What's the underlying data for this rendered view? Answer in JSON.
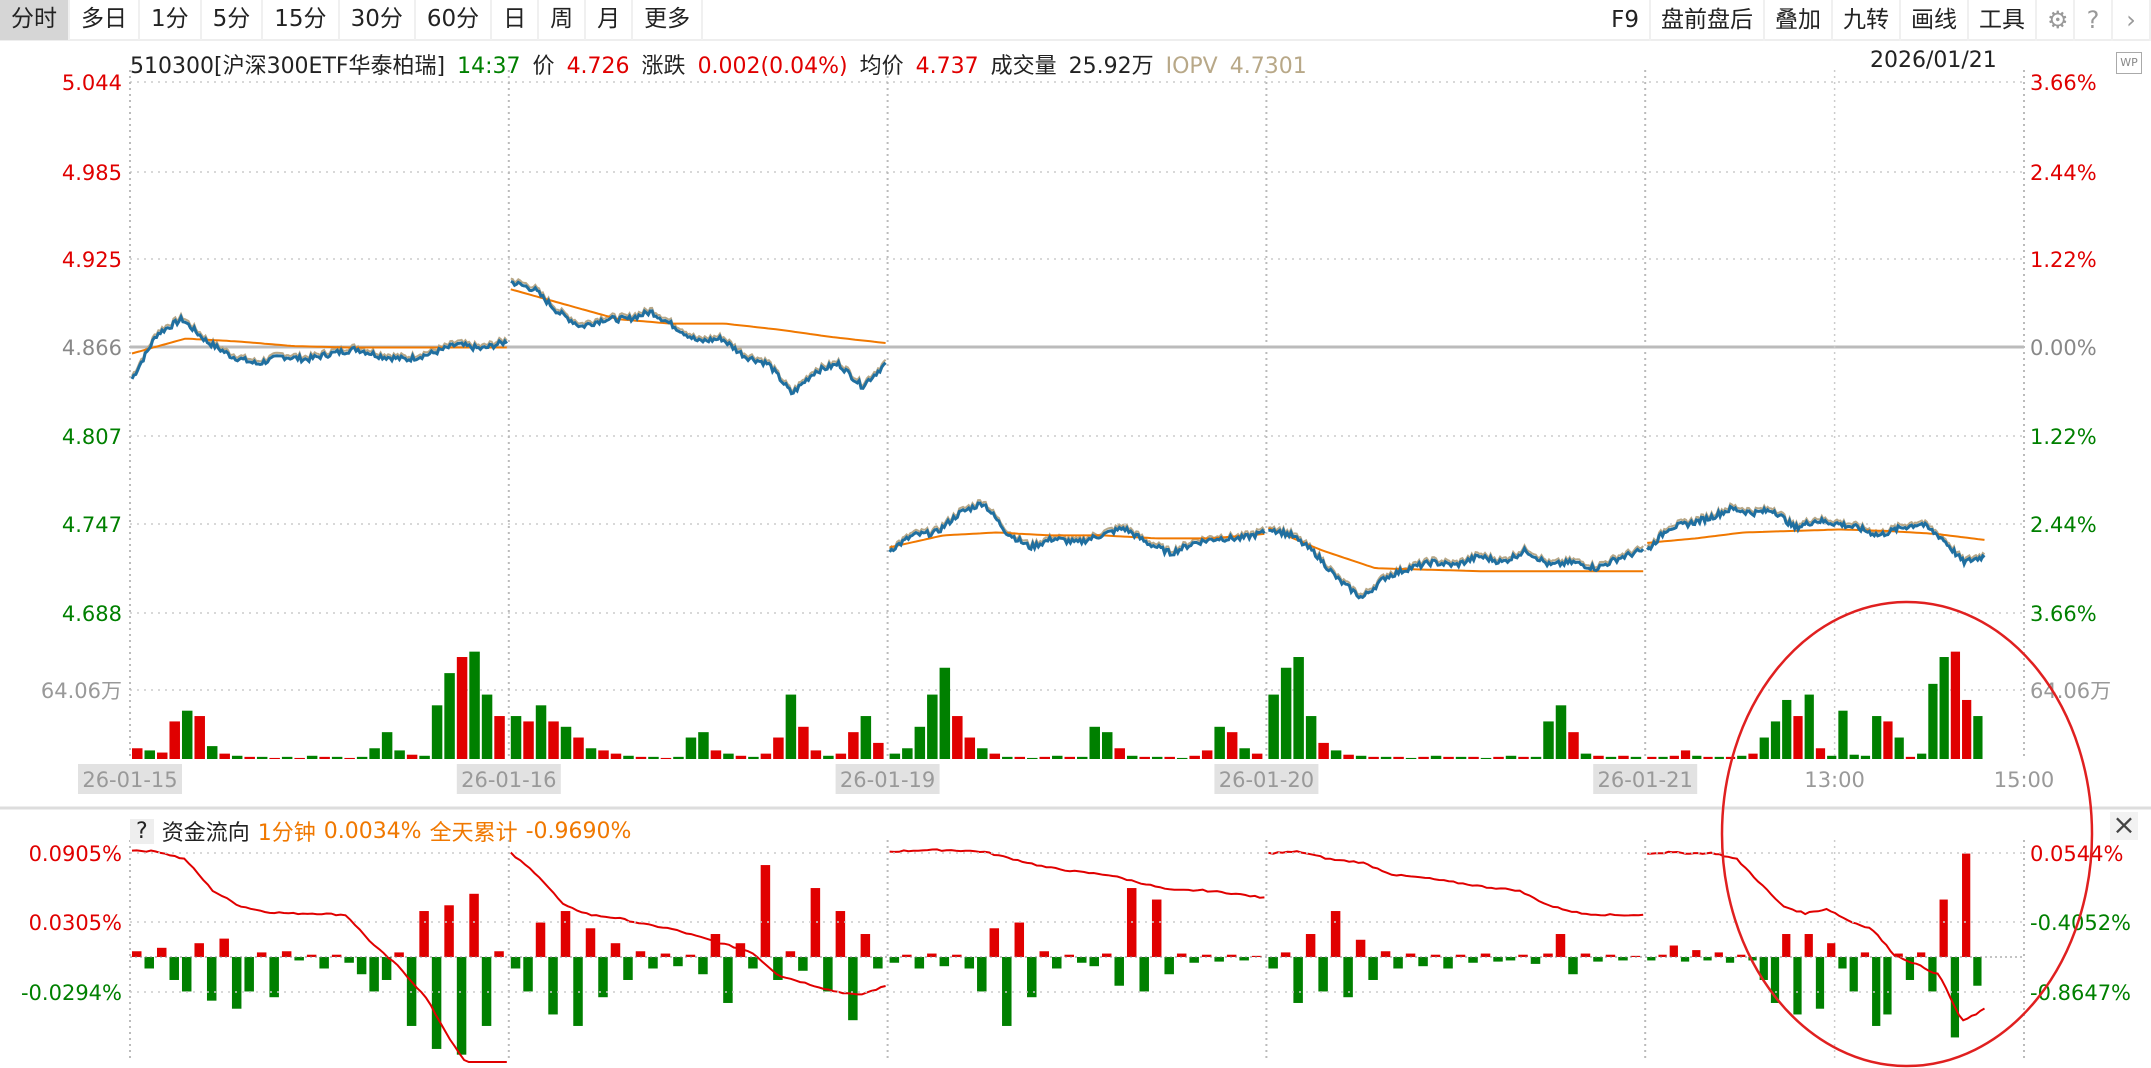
{
  "toolbar": {
    "tabs": [
      "分时",
      "多日",
      "1分",
      "5分",
      "15分",
      "30分",
      "60分",
      "日",
      "周",
      "月",
      "更多"
    ],
    "active": 1,
    "right": [
      "F9",
      "盘前盘后",
      "叠加",
      "九转",
      "画线",
      "工具"
    ],
    "icons": [
      "gear-icon",
      "help-icon",
      "chevron-right-icon"
    ]
  },
  "header": {
    "symbol": "510300[沪深300ETF华泰柏瑞]",
    "time": "14:37",
    "price_label": "价",
    "price": "4.726",
    "change_label": "涨跌",
    "change": "0.002(0.04%)",
    "avg_label": "均价",
    "avg": "4.737",
    "vol_label": "成交量",
    "vol": "25.92万",
    "iopv_label": "IOPV",
    "iopv": "4.7301",
    "date": "2026/01/21",
    "wp": "WP"
  },
  "colors": {
    "up": "#e00000",
    "down": "#008000",
    "price_line": "#1f6fa0",
    "avg_line": "#f07800",
    "iopv_line": "#b8a888",
    "accent": "#f07800"
  },
  "chart_data": [
    {
      "type": "line",
      "title": "",
      "y_left_ticks": [
        "5.044",
        "4.985",
        "4.925",
        "4.866",
        "4.807",
        "4.747",
        "4.688"
      ],
      "y_right_ticks": [
        "3.66%",
        "2.44%",
        "1.22%",
        "0.00%",
        "1.22%",
        "2.44%",
        "3.66%"
      ],
      "ylim": [
        4.688,
        5.044
      ],
      "prev_close": 4.866,
      "x_labels": [
        "26-01-15",
        "26-01-16",
        "26-01-19",
        "26-01-20",
        "26-01-21",
        "13:00",
        "15:00"
      ],
      "days": [
        {
          "price": [
            4.845,
            4.875,
            4.885,
            4.87,
            4.86,
            4.855,
            4.86,
            4.858,
            4.862,
            4.865,
            4.86,
            4.858,
            4.862,
            4.868,
            4.865,
            4.87
          ],
          "avg": [
            4.862,
            4.872,
            4.87,
            4.867,
            4.866,
            4.866,
            4.866,
            4.866
          ]
        },
        {
          "price": [
            4.91,
            4.905,
            4.89,
            4.88,
            4.885,
            4.885,
            4.89,
            4.88,
            4.87,
            4.872,
            4.86,
            4.855,
            4.835,
            4.85,
            4.855,
            4.84,
            4.855
          ],
          "avg": [
            4.905,
            4.895,
            4.885,
            4.882,
            4.882,
            4.878,
            4.873,
            4.869
          ]
        },
        {
          "price": [
            4.73,
            4.74,
            4.742,
            4.755,
            4.762,
            4.742,
            4.732,
            4.738,
            4.735,
            4.74,
            4.745,
            4.735,
            4.728,
            4.735,
            4.738,
            4.738,
            4.742
          ],
          "avg": [
            4.732,
            4.74,
            4.742,
            4.74,
            4.74,
            4.738,
            4.738,
            4.741
          ]
        },
        {
          "price": [
            4.745,
            4.74,
            4.728,
            4.71,
            4.698,
            4.712,
            4.718,
            4.722,
            4.72,
            4.726,
            4.722,
            4.73,
            4.72,
            4.722,
            4.718,
            4.725,
            4.73
          ],
          "avg": [
            4.745,
            4.73,
            4.718,
            4.717,
            4.716,
            4.716,
            4.716,
            4.716
          ]
        },
        {
          "price": [
            4.73,
            4.745,
            4.748,
            4.752,
            4.758,
            4.755,
            4.757,
            4.745,
            4.75,
            4.748,
            4.745,
            4.74,
            4.745,
            4.748,
            4.738,
            4.722,
            4.726
          ],
          "avg": [
            4.735,
            4.738,
            4.742,
            4.743,
            4.744,
            4.743,
            4.741,
            4.737
          ]
        }
      ],
      "day_fraction_shown": [
        1,
        1,
        1,
        1,
        0.9
      ]
    },
    {
      "type": "bar",
      "title": "成交量",
      "y_tick": "64.06万",
      "ylim": [
        0,
        136
      ],
      "days": [
        {
          "v": [
            10,
            8,
            6,
            35,
            45,
            40,
            12,
            5,
            3,
            2,
            2,
            1,
            2,
            1,
            3,
            2,
            2,
            1,
            2,
            10,
            25,
            8,
            4,
            3,
            50,
            80,
            95,
            100,
            60,
            40
          ],
          "c": "rgrrgrgrgrgrgrgrgrggggrgggrggr"
        },
        {
          "v": [
            40,
            35,
            50,
            35,
            30,
            20,
            10,
            8,
            5,
            3,
            2,
            2,
            1,
            2,
            20,
            25,
            8,
            5,
            3,
            2,
            5,
            20,
            60,
            30,
            8,
            3,
            5,
            25,
            40,
            15
          ],
          "c": "grgrgrgrrgrgrgggrgrgrrgrrgrrgr"
        },
        {
          "v": [
            5,
            10,
            30,
            60,
            85,
            40,
            20,
            10,
            5,
            2,
            2,
            1,
            2,
            3,
            2,
            2,
            30,
            25,
            10,
            3,
            2,
            2,
            2,
            1,
            3,
            8,
            30,
            25,
            10,
            5
          ],
          "c": "gggggrrgrgrgrgrgggrgrgrgrrgrgr"
        },
        {
          "v": [
            60,
            85,
            95,
            40,
            15,
            8,
            4,
            3,
            2,
            2,
            2,
            1,
            2,
            3,
            2,
            2,
            2,
            1,
            2,
            3,
            2,
            2,
            35,
            50,
            25,
            5,
            3,
            2,
            3,
            2
          ],
          "c": "ggggrgrgrgrgrgrgrgrgrgggrgrgrg"
        },
        {
          "v": [
            2,
            2,
            3,
            8,
            3,
            2,
            2,
            2,
            3,
            5,
            20,
            35,
            55,
            40,
            60,
            10,
            3,
            45,
            4,
            3,
            40,
            35,
            20,
            2,
            5,
            70,
            95,
            100,
            55,
            40
          ],
          "c": "rgrrgrgrgrgggrgrgggggrgrgggrrg"
        }
      ]
    },
    {
      "type": "bar+line",
      "title": "资金流向",
      "period_label": "1分钟",
      "period_value": "0.0034%",
      "total_label": "全天累计",
      "total_value": "-0.9690%",
      "y_left_ticks": [
        "0.0905%",
        "0.0305%",
        "-0.0294%"
      ],
      "y_right_ticks": [
        "0.0544%",
        "-0.4052%",
        "-0.8647%"
      ],
      "left_ylim": [
        -0.0894,
        0.0905
      ],
      "right_ylim": [
        -1.554,
        0.0544
      ],
      "days": [
        {
          "line": [
            0.06,
            0.05,
            0.0,
            -0.2,
            -0.3,
            -0.34,
            -0.35,
            -0.35,
            -0.36,
            -0.55,
            -0.7,
            -0.9,
            -1.2,
            -1.45,
            -1.55
          ],
          "bars": [
            0.005,
            -0.01,
            0.008,
            -0.02,
            -0.03,
            0.012,
            -0.038,
            0.016,
            -0.045,
            -0.03,
            0.004,
            -0.035,
            0.005,
            -0.003,
            0.002,
            -0.01,
            0.002,
            -0.005,
            -0.015,
            -0.03,
            -0.02,
            0.004,
            -0.06,
            0.04,
            -0.08,
            0.045,
            -0.085,
            0.055,
            -0.06,
            0.005
          ]
        },
        {
          "line": [
            0.04,
            -0.1,
            -0.3,
            -0.36,
            -0.38,
            -0.42,
            -0.45,
            -0.5,
            -0.55,
            -0.6,
            -0.75,
            -0.8,
            -0.85,
            -0.88,
            -0.82
          ],
          "bars": [
            -0.01,
            -0.03,
            0.03,
            -0.05,
            0.04,
            -0.06,
            0.025,
            -0.035,
            0.012,
            -0.02,
            0.005,
            -0.01,
            0.003,
            -0.008,
            0.002,
            -0.015,
            0.02,
            -0.04,
            0.012,
            -0.01,
            0.08,
            -0.02,
            0.005,
            -0.012,
            0.06,
            -0.03,
            0.04,
            -0.055,
            0.02,
            -0.01
          ]
        },
        {
          "line": [
            0.05,
            0.06,
            0.06,
            0.05,
            0.0,
            -0.05,
            -0.08,
            -0.1,
            -0.15,
            -0.2,
            -0.2,
            -0.22,
            -0.25
          ],
          "bars": [
            -0.005,
            0.002,
            -0.01,
            0.003,
            -0.008,
            0.002,
            -0.01,
            -0.03,
            0.025,
            -0.06,
            0.03,
            -0.035,
            0.005,
            -0.01,
            0.002,
            -0.005,
            -0.008,
            0.003,
            -0.025,
            0.06,
            -0.03,
            0.05,
            -0.015,
            0.003,
            -0.005,
            0.002,
            -0.004,
            0.002,
            -0.003,
            0.001
          ]
        },
        {
          "line": [
            0.04,
            0.05,
            0.0,
            -0.02,
            -0.1,
            -0.12,
            -0.15,
            -0.18,
            -0.2,
            -0.3,
            -0.35,
            -0.36,
            -0.36
          ],
          "bars": [
            -0.01,
            0.004,
            -0.04,
            0.02,
            -0.03,
            0.04,
            -0.035,
            0.015,
            -0.02,
            0.005,
            -0.01,
            0.003,
            -0.008,
            0.002,
            -0.01,
            0.002,
            -0.005,
            0.003,
            -0.004,
            -0.003,
            0.002,
            -0.006,
            0.003,
            0.02,
            -0.015,
            0.003,
            -0.004,
            0.002,
            -0.003,
            0.001
          ]
        },
        {
          "line": [
            0.04,
            0.045,
            0.04,
            0.04,
            0.0,
            -0.15,
            -0.3,
            -0.35,
            -0.32,
            -0.4,
            -0.45,
            -0.62,
            -0.68,
            -0.75,
            -1.05,
            -0.97
          ],
          "bars": [
            -0.003,
            0.002,
            0.01,
            -0.004,
            0.006,
            -0.003,
            0.004,
            -0.005,
            0.002,
            -0.003,
            -0.02,
            -0.04,
            0.02,
            -0.05,
            0.02,
            -0.045,
            0.012,
            -0.01,
            -0.03,
            0.004,
            -0.06,
            -0.05,
            0.003,
            -0.02,
            0.004,
            -0.03,
            0.05,
            -0.07,
            0.09,
            -0.025
          ]
        }
      ]
    }
  ]
}
